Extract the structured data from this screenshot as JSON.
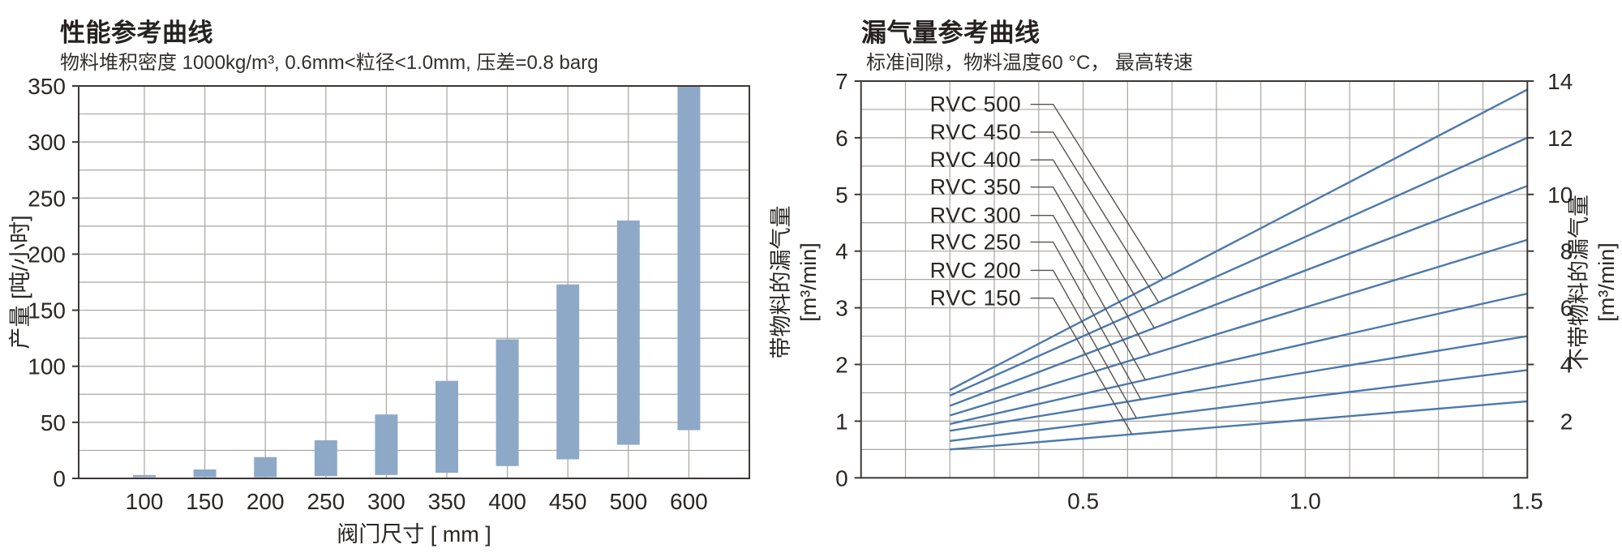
{
  "page": {
    "background": "#ffffff"
  },
  "colors": {
    "bar": "#8EA9C8",
    "line": "#4B79AC",
    "grid": "#A9A6A2",
    "axis": "#3C3835",
    "leader": "#56514C",
    "text": "#2A2724"
  },
  "chart_data": [
    {
      "id": "performance",
      "type": "bar",
      "title": "性能参考曲线",
      "subtitle": "物料堆积密度 1000kg/m³, 0.6mm<粒径<1.0mm, 压差=0.8 barg",
      "xlabel": "阀门尺寸 [ mm ]",
      "ylabel": "产量 [吨/小时]",
      "categories": [
        "100",
        "150",
        "200",
        "250",
        "300",
        "350",
        "400",
        "450",
        "500",
        "600"
      ],
      "bar_ranges_min_max": [
        [
          1,
          3
        ],
        [
          1,
          8
        ],
        [
          1,
          19
        ],
        [
          2,
          34
        ],
        [
          3,
          57
        ],
        [
          5,
          87
        ],
        [
          11,
          124
        ],
        [
          17,
          173
        ],
        [
          30,
          230
        ],
        [
          43,
          350
        ]
      ],
      "top_bar_clipped_at_ymax": "600",
      "ylim": [
        0,
        350
      ],
      "y_tick_labels": [
        0,
        50,
        100,
        150,
        200,
        250,
        300,
        350
      ],
      "y_minor_step": 25,
      "grid": true,
      "legend": "none"
    },
    {
      "id": "leakage",
      "type": "line",
      "title": "漏气量参考曲线",
      "subtitle": "标准间隙，物料温度60 °C， 最高转速",
      "ylabel_left": "带物料的漏气量",
      "ylabel_left_unit": "[m³/min]",
      "ylabel_right": "不带物料的漏气量",
      "ylabel_right_unit": "[m³/min]",
      "xlim": [
        0,
        1.5
      ],
      "x_tick_labels": [
        "0.5",
        "1.0",
        "1.5"
      ],
      "x_tick_values": [
        0.5,
        1.0,
        1.5
      ],
      "x_minor_step": 0.1,
      "ylim_left": [
        0,
        7
      ],
      "y_ticks_left": [
        0,
        1,
        2,
        3,
        4,
        5,
        6,
        7
      ],
      "y_minor_step_left": 0.5,
      "ylim_right": [
        0,
        14
      ],
      "y_ticks_right": [
        2,
        4,
        6,
        8,
        10,
        12,
        14
      ],
      "right_axis_equals": "2 × left axis",
      "line_x_span": [
        0.2,
        1.5
      ],
      "series": [
        {
          "name": "RVC 500",
          "x": [
            0.2,
            1.5
          ],
          "values_left_axis": [
            1.55,
            6.85
          ]
        },
        {
          "name": "RVC 450",
          "x": [
            0.2,
            1.5
          ],
          "values_left_axis": [
            1.45,
            6.0
          ]
        },
        {
          "name": "RVC 400",
          "x": [
            0.2,
            1.5
          ],
          "values_left_axis": [
            1.27,
            5.15
          ]
        },
        {
          "name": "RVC 350",
          "x": [
            0.2,
            1.5
          ],
          "values_left_axis": [
            1.1,
            4.2
          ]
        },
        {
          "name": "RVC 300",
          "x": [
            0.2,
            1.5
          ],
          "values_left_axis": [
            0.95,
            3.25
          ]
        },
        {
          "name": "RVC 250",
          "x": [
            0.2,
            1.5
          ],
          "values_left_axis": [
            0.83,
            2.5
          ]
        },
        {
          "name": "RVC 200",
          "x": [
            0.2,
            1.5
          ],
          "values_left_axis": [
            0.65,
            1.9
          ]
        },
        {
          "name": "RVC 150",
          "x": [
            0.2,
            1.5
          ],
          "values_left_axis": [
            0.5,
            1.35
          ]
        }
      ],
      "series_labels": {
        "text_x": 0.155,
        "y_positions_left_axis": [
          6.59,
          6.1,
          5.61,
          5.13,
          4.63,
          4.16,
          3.66,
          3.17
        ],
        "leader_end_x": [
          0.68,
          0.67,
          0.66,
          0.65,
          0.64,
          0.63,
          0.62,
          0.61
        ]
      },
      "grid": true,
      "legend": "inline labels with leader lines"
    }
  ]
}
